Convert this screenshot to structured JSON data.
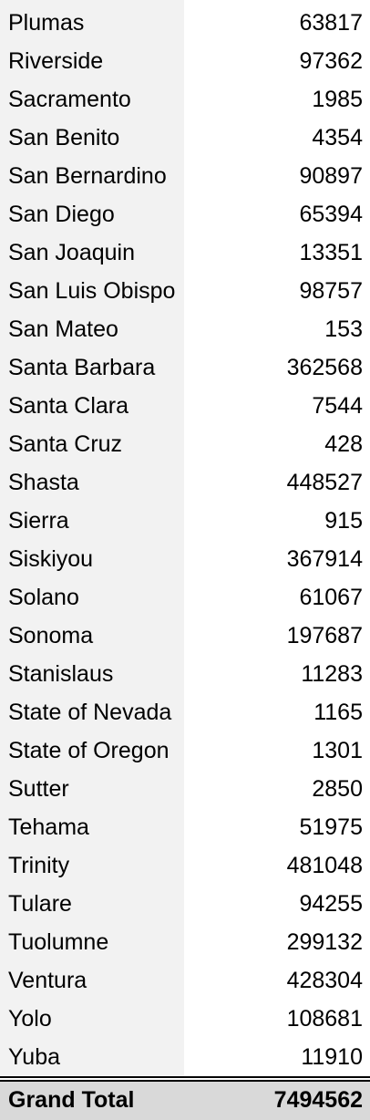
{
  "pivot": {
    "rows": [
      {
        "label": "Plumas",
        "value": "63817"
      },
      {
        "label": "Riverside",
        "value": "97362"
      },
      {
        "label": "Sacramento",
        "value": "1985"
      },
      {
        "label": "San Benito",
        "value": "4354"
      },
      {
        "label": "San Bernardino",
        "value": "90897"
      },
      {
        "label": "San Diego",
        "value": "65394"
      },
      {
        "label": "San Joaquin",
        "value": "13351"
      },
      {
        "label": "San Luis Obispo",
        "value": "98757"
      },
      {
        "label": "San Mateo",
        "value": "153"
      },
      {
        "label": "Santa Barbara",
        "value": "362568"
      },
      {
        "label": "Santa Clara",
        "value": "7544"
      },
      {
        "label": "Santa Cruz",
        "value": "428"
      },
      {
        "label": "Shasta",
        "value": "448527"
      },
      {
        "label": "Sierra",
        "value": "915"
      },
      {
        "label": "Siskiyou",
        "value": "367914"
      },
      {
        "label": "Solano",
        "value": "61067"
      },
      {
        "label": "Sonoma",
        "value": "197687"
      },
      {
        "label": "Stanislaus",
        "value": "11283"
      },
      {
        "label": "State of Nevada",
        "value": "1165"
      },
      {
        "label": "State of Oregon",
        "value": "1301"
      },
      {
        "label": "Sutter",
        "value": "2850"
      },
      {
        "label": "Tehama",
        "value": "51975"
      },
      {
        "label": "Trinity",
        "value": "481048"
      },
      {
        "label": "Tulare",
        "value": "94255"
      },
      {
        "label": "Tuolumne",
        "value": "299132"
      },
      {
        "label": "Ventura",
        "value": "428304"
      },
      {
        "label": "Yolo",
        "value": "108681"
      },
      {
        "label": "Yuba",
        "value": "11910"
      }
    ],
    "grand_total": {
      "label": "Grand Total",
      "value": "7494562"
    }
  },
  "colors": {
    "label_column_bg": "#f2f2f2",
    "total_row_bg": "#d9d9d9",
    "text": "#000000",
    "separator": "#000000"
  }
}
